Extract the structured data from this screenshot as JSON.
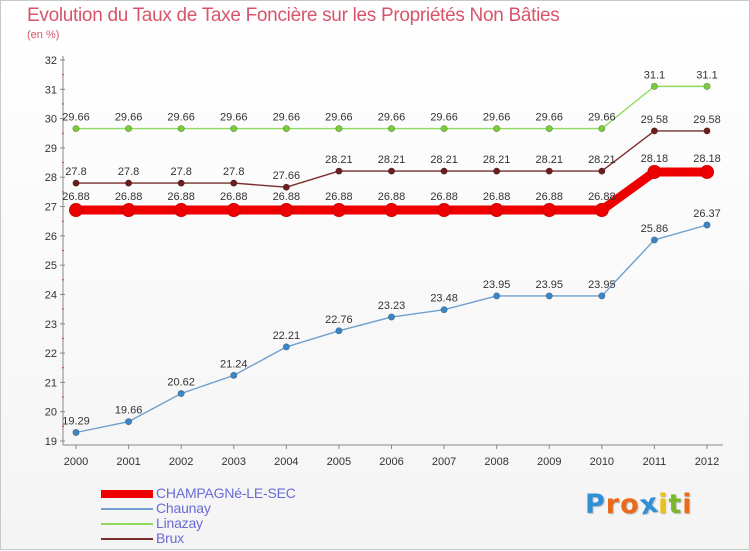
{
  "title": "Evolution du Taux de Taxe Foncière sur les Propriétés Non Bâties",
  "unit": "(en %)",
  "logo": {
    "letters": [
      "P",
      "r",
      "o",
      "x",
      "i",
      "t",
      "i"
    ],
    "colors": [
      "#2f8fd8",
      "#e86a1a",
      "#e86a1a",
      "#2f8fd8",
      "#e8c21a",
      "#7ab82a",
      "#e86a1a"
    ]
  },
  "chart_data": {
    "type": "line",
    "title": "Evolution du Taux de Taxe Foncière sur les Propriétés Non Bâties",
    "ylabel": "(en %)",
    "xlabel": "",
    "x": [
      "2000",
      "2001",
      "2002",
      "2003",
      "2004",
      "2005",
      "2006",
      "2007",
      "2008",
      "2009",
      "2010",
      "2011",
      "2012"
    ],
    "ylim": [
      19,
      32
    ],
    "yticks": [
      "19",
      "20",
      "21",
      "22",
      "23",
      "24",
      "25",
      "26",
      "27",
      "28",
      "29",
      "30",
      "31",
      "32"
    ],
    "grid": false,
    "legend_position": "bottom-left",
    "series": [
      {
        "name": "CHAMPAGNé-LE-SEC",
        "color": "#ee0000",
        "marker_color": "#ee0000",
        "values": [
          26.88,
          26.88,
          26.88,
          26.88,
          26.88,
          26.88,
          26.88,
          26.88,
          26.88,
          26.88,
          26.88,
          28.18,
          28.18
        ],
        "labels": [
          "26.88",
          "26.88",
          "26.88",
          "26.88",
          "26.88",
          "26.88",
          "26.88",
          "26.88",
          "26.88",
          "26.88",
          "26.88",
          "28.18",
          "28.18"
        ]
      },
      {
        "name": "Chaunay",
        "color": "#6fa0cf",
        "marker_color": "#3b86c8",
        "values": [
          19.29,
          19.66,
          20.62,
          21.24,
          22.21,
          22.76,
          23.23,
          23.48,
          23.95,
          23.95,
          23.95,
          25.86,
          26.37
        ],
        "labels": [
          "19.29",
          "19.66",
          "20.62",
          "21.24",
          "22.21",
          "22.76",
          "23.23",
          "23.48",
          "23.95",
          "23.95",
          "23.95",
          "25.86",
          "26.37"
        ]
      },
      {
        "name": "Linazay",
        "color": "#8fdc5a",
        "marker_color": "#7acc3a",
        "values": [
          29.66,
          29.66,
          29.66,
          29.66,
          29.66,
          29.66,
          29.66,
          29.66,
          29.66,
          29.66,
          29.66,
          31.1,
          31.1
        ],
        "labels": [
          "29.66",
          "29.66",
          "29.66",
          "29.66",
          "29.66",
          "29.66",
          "29.66",
          "29.66",
          "29.66",
          "29.66",
          "29.66",
          "31.1",
          "31.1"
        ]
      },
      {
        "name": "Brux",
        "color": "#7a2e2e",
        "marker_color": "#6a1e1e",
        "values": [
          27.8,
          27.8,
          27.8,
          27.8,
          27.66,
          28.21,
          28.21,
          28.21,
          28.21,
          28.21,
          28.21,
          29.58,
          29.58
        ],
        "labels": [
          "27.8",
          "27.8",
          "27.8",
          "27.8",
          "27.66",
          "28.21",
          "28.21",
          "28.21",
          "28.21",
          "28.21",
          "28.21",
          "29.58",
          "29.58"
        ]
      }
    ]
  }
}
